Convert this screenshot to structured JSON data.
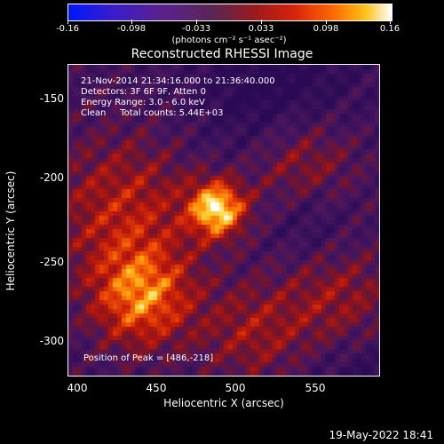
{
  "colorbar": {
    "ticks": [
      "-0.16",
      "-0.098",
      "-0.033",
      "0.033",
      "0.098",
      "0.16"
    ],
    "units": "(photons cm⁻² s⁻¹ asec⁻²)"
  },
  "title": "Reconstructed RHESSI Image",
  "info": {
    "line1": "21-Nov-2014 21:34:16.000 to 21:36:40.000",
    "line2": "Detectors: 3F 6F 9F, Atten 0",
    "line3": "Energy Range: 3.0 - 6.0 keV",
    "line4": "Clean     Total counts: 5.44E+03"
  },
  "peak_text": "Position of Peak = [486,-218]",
  "axes": {
    "xlabel": "Heliocentric X (arcsec)",
    "ylabel": "Heliocentric Y (arcsec)",
    "xticks": [
      "400",
      "450",
      "500",
      "550"
    ],
    "yticks": [
      "-150",
      "-200",
      "-250",
      "-300"
    ]
  },
  "timestamp": "19-May-2022 18:41",
  "colors": {
    "low": "#2a0a55",
    "mid": "#b5160c",
    "high": "#ffffff"
  }
}
